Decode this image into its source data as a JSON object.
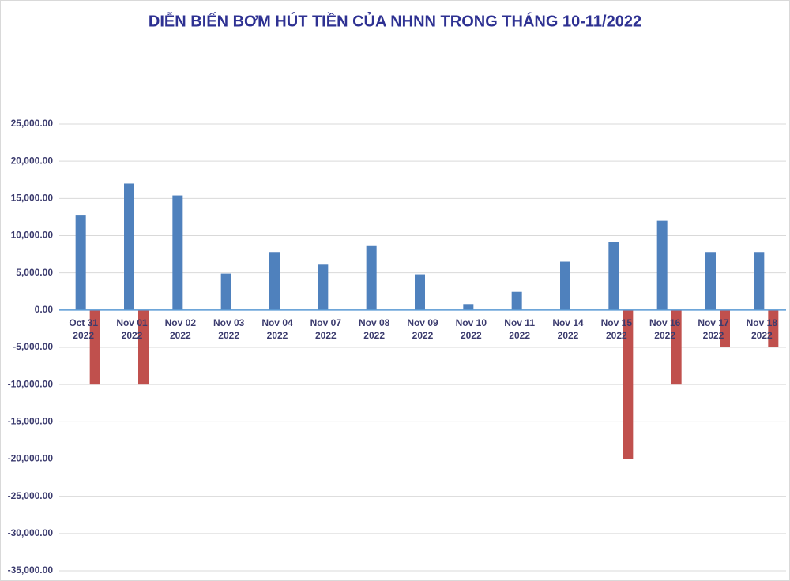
{
  "chart_data": {
    "type": "bar",
    "title": "DIỄN BIẾN BƠM HÚT TIỀN CỦA NHNN TRONG THÁNG 10-11/2022",
    "categories": [
      "Oct 31 2022",
      "Nov 01 2022",
      "Nov 02 2022",
      "Nov 03 2022",
      "Nov 04 2022",
      "Nov 07 2022",
      "Nov 08 2022",
      "Nov 09 2022",
      "Nov 10 2022",
      "Nov 11 2022",
      "Nov 14 2022",
      "Nov 15 2022",
      "Nov 16 2022",
      "Nov 17 2022",
      "Nov 18 2022"
    ],
    "series": [
      {
        "color": "#4f81bd",
        "values": [
          12800,
          17000,
          15400,
          4900,
          7800,
          6100,
          8700,
          4800,
          800,
          2450,
          6500,
          9200,
          12000,
          7800,
          7800
        ]
      },
      {
        "color": "#c0504d",
        "values": [
          -10000,
          -10000,
          0,
          0,
          0,
          0,
          0,
          0,
          0,
          0,
          0,
          -20000,
          -10000,
          -5000,
          -5000
        ]
      }
    ],
    "ylim": [
      -35000,
      25000
    ],
    "yticks": [
      {
        "value": -35000,
        "label": "-35,000.00"
      },
      {
        "value": -30000,
        "label": "-30,000.00"
      },
      {
        "value": -25000,
        "label": "-25,000.00"
      },
      {
        "value": -20000,
        "label": "-20,000.00"
      },
      {
        "value": -15000,
        "label": "-15,000.00"
      },
      {
        "value": -10000,
        "label": "-10,000.00"
      },
      {
        "value": -5000,
        "label": "-5,000.00"
      },
      {
        "value": 0,
        "label": "0.00"
      },
      {
        "value": 5000,
        "label": "5,000.00"
      },
      {
        "value": 10000,
        "label": "10,000.00"
      },
      {
        "value": 15000,
        "label": "15,000.00"
      },
      {
        "value": 20000,
        "label": "20,000.00"
      },
      {
        "value": 25000,
        "label": "25,000.00"
      }
    ],
    "grid": true
  }
}
